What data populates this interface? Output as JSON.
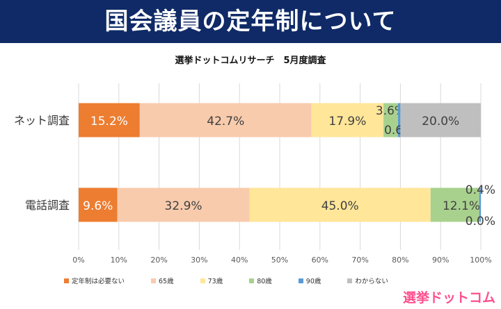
{
  "header": {
    "title": "国会議員の定年制について"
  },
  "brand": {
    "logo_text": "選挙ドットコム"
  },
  "chart_data": {
    "type": "bar",
    "orientation": "horizontal",
    "stacked": true,
    "subtitle": "選挙ドットコムリサーチ　5月度調査",
    "categories": [
      "ネット調査",
      "電話調査"
    ],
    "series": [
      {
        "name": "定年制は必要ない",
        "values": [
          15.2,
          9.6
        ],
        "labels": [
          "15.2%",
          "9.6%"
        ],
        "color": "#ed7d31"
      },
      {
        "name": "65歳",
        "values": [
          42.7,
          32.9
        ],
        "labels": [
          "42.7%",
          "32.9%"
        ],
        "color": "#f8cbad"
      },
      {
        "name": "73歳",
        "values": [
          17.9,
          45.0
        ],
        "labels": [
          "17.9%",
          "45.0%"
        ],
        "color": "#ffe699"
      },
      {
        "name": "80歳",
        "values": [
          3.6,
          12.1
        ],
        "labels": [
          "3.6%",
          "12.1%"
        ],
        "color": "#a9d18e"
      },
      {
        "name": "90歳",
        "values": [
          0.6,
          0.4
        ],
        "labels": [
          "0.6%",
          "0.4%"
        ],
        "color": "#5b9bd5"
      },
      {
        "name": "わからない",
        "values": [
          20.0,
          0.0
        ],
        "labels": [
          "20.0%",
          "0.0%"
        ],
        "color": "#bfbfbf"
      }
    ],
    "xlim": [
      0,
      100
    ],
    "xticks": [
      "0%",
      "10%",
      "20%",
      "30%",
      "40%",
      "50%",
      "60%",
      "70%",
      "80%",
      "90%",
      "100%"
    ],
    "grid": true,
    "legend_position": "bottom"
  }
}
